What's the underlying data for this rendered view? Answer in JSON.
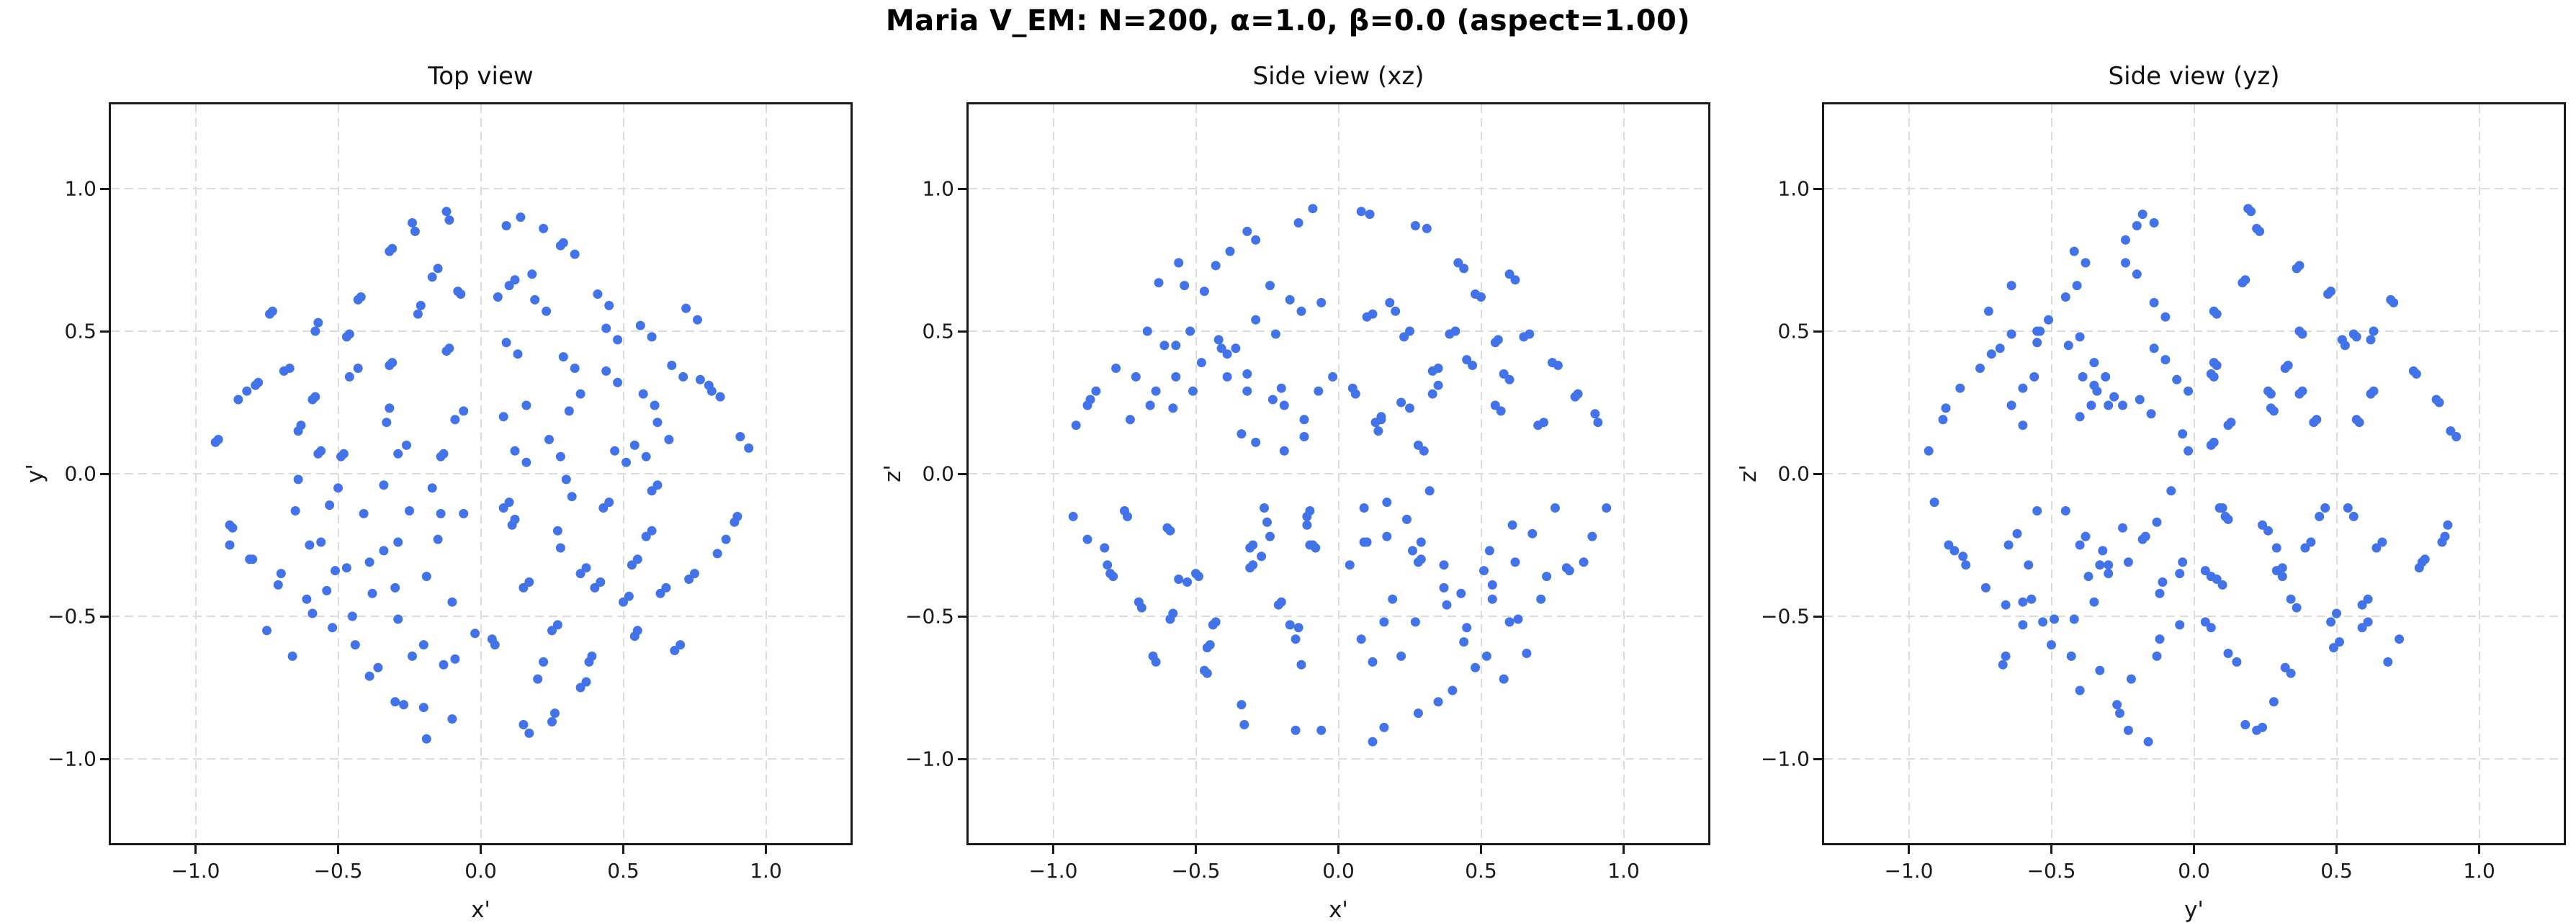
{
  "figure": {
    "suptitle": "Maria V_EM: N=200, α=1.0, β=0.0  (aspect=1.00)"
  },
  "style": {
    "point_color": "#4373e8",
    "grid_color": "#dcdcdc",
    "spine_color": "#1a1a1a",
    "background": "#ffffff"
  },
  "chart_data": {
    "type": "scatter",
    "n_points": 200,
    "params": {
      "N": "200",
      "alpha": "1.0",
      "beta": "0.0",
      "aspect": "1.00"
    },
    "grid": "dashed",
    "legend": "none",
    "axis_range": [
      -1.3,
      1.3
    ],
    "ticks": [
      -1.0,
      -0.5,
      0.0,
      0.5,
      1.0
    ],
    "tick_labels": [
      "−1.0",
      "−0.5",
      "0.0",
      "0.5",
      "1.0"
    ],
    "views": [
      {
        "title": "Top view",
        "xlabel": "x'",
        "ylabel": "y'",
        "dims": [
          0,
          1
        ]
      },
      {
        "title": "Side view (xz)",
        "xlabel": "x'",
        "ylabel": "z'",
        "dims": [
          0,
          2
        ]
      },
      {
        "title": "Side view (yz)",
        "xlabel": "y'",
        "ylabel": "z'",
        "dims": [
          1,
          2
        ]
      }
    ],
    "points_xyz": [
      [
        0.84,
        0.27,
        0.28
      ],
      [
        0.22,
        0.86,
        0.25
      ],
      [
        0.31,
        0.22,
        0.86
      ],
      [
        0.56,
        0.52,
        0.47
      ],
      [
        0.67,
        0.38,
        0.49
      ],
      [
        0.41,
        0.63,
        0.5
      ],
      [
        0.48,
        0.47,
        0.63
      ],
      [
        0.91,
        0.13,
        0.18
      ],
      [
        0.14,
        0.9,
        0.15
      ],
      [
        0.08,
        0.2,
        0.92
      ],
      [
        0.72,
        0.58,
        0.18
      ],
      [
        0.62,
        0.18,
        0.68
      ],
      [
        0.18,
        0.7,
        0.6
      ],
      [
        0.33,
        0.37,
        0.28
      ],
      [
        0.13,
        0.42,
        0.18
      ],
      [
        0.47,
        0.08,
        0.38
      ],
      [
        0.23,
        0.57,
        0.48
      ],
      [
        0.57,
        0.28,
        0.22
      ],
      [
        0.12,
        0.08,
        0.56
      ],
      [
        0.77,
        0.33,
        0.38
      ],
      [
        0.33,
        0.77,
        0.36
      ],
      [
        0.44,
        0.36,
        0.72
      ],
      [
        0.06,
        0.62,
        0.28
      ],
      [
        0.58,
        0.06,
        0.35
      ],
      [
        0.28,
        0.06,
        0.1
      ],
      [
        0.86,
        -0.23,
        -0.31
      ],
      [
        0.26,
        -0.84,
        -0.27
      ],
      [
        0.28,
        -0.26,
        -0.84
      ],
      [
        0.54,
        -0.57,
        -0.44
      ],
      [
        0.63,
        -0.42,
        -0.51
      ],
      [
        0.38,
        -0.66,
        -0.46
      ],
      [
        0.52,
        -0.43,
        -0.64
      ],
      [
        0.89,
        -0.17,
        -0.22
      ],
      [
        0.17,
        -0.91,
        -0.1
      ],
      [
        0.12,
        -0.16,
        -0.94
      ],
      [
        0.68,
        -0.62,
        -0.21
      ],
      [
        0.58,
        -0.22,
        -0.72
      ],
      [
        0.22,
        -0.66,
        -0.64
      ],
      [
        0.37,
        -0.33,
        -0.32
      ],
      [
        0.17,
        -0.38,
        -0.22
      ],
      [
        0.43,
        -0.12,
        -0.42
      ],
      [
        0.27,
        -0.53,
        -0.52
      ],
      [
        0.53,
        -0.32,
        -0.27
      ],
      [
        0.08,
        -0.12,
        -0.58
      ],
      [
        0.73,
        -0.37,
        -0.36
      ],
      [
        0.37,
        -0.73,
        -0.4
      ],
      [
        0.4,
        -0.4,
        -0.76
      ],
      [
        0.04,
        -0.58,
        -0.32
      ],
      [
        0.62,
        -0.04,
        -0.31
      ],
      [
        0.32,
        -0.08,
        -0.06
      ],
      [
        -0.82,
        0.29,
        -0.26
      ],
      [
        -0.24,
        0.88,
        -0.22
      ],
      [
        -0.33,
        0.18,
        -0.88
      ],
      [
        -0.58,
        0.5,
        -0.49
      ],
      [
        -0.69,
        0.36,
        -0.47
      ],
      [
        -0.43,
        0.61,
        -0.52
      ],
      [
        -0.46,
        0.49,
        -0.61
      ],
      [
        -0.93,
        0.11,
        -0.15
      ],
      [
        -0.11,
        0.89,
        -0.18
      ],
      [
        -0.06,
        0.22,
        -0.9
      ],
      [
        -0.74,
        0.56,
        -0.15
      ],
      [
        -0.64,
        0.15,
        -0.66
      ],
      [
        -0.15,
        0.72,
        -0.58
      ],
      [
        -0.31,
        0.39,
        -0.26
      ],
      [
        -0.11,
        0.44,
        -0.15
      ],
      [
        -0.49,
        0.06,
        -0.36
      ],
      [
        -0.21,
        0.59,
        -0.46
      ],
      [
        -0.59,
        0.26,
        -0.2
      ],
      [
        -0.14,
        0.06,
        -0.54
      ],
      [
        -0.79,
        0.31,
        -0.36
      ],
      [
        -0.31,
        0.79,
        -0.33
      ],
      [
        -0.46,
        0.34,
        -0.7
      ],
      [
        -0.08,
        0.64,
        -0.26
      ],
      [
        -0.56,
        0.08,
        -0.37
      ],
      [
        -0.26,
        0.1,
        -0.12
      ],
      [
        -0.88,
        -0.25,
        0.24
      ],
      [
        -0.2,
        -0.82,
        0.3
      ],
      [
        -0.29,
        -0.24,
        0.82
      ],
      [
        -0.52,
        -0.54,
        0.5
      ],
      [
        -0.61,
        -0.44,
        0.45
      ],
      [
        -0.36,
        -0.68,
        0.44
      ],
      [
        -0.54,
        -0.41,
        0.66
      ],
      [
        -0.87,
        -0.19,
        0.26
      ],
      [
        -0.19,
        -0.93,
        0.08
      ],
      [
        -0.14,
        -0.14,
        0.88
      ],
      [
        -0.66,
        -0.64,
        0.24
      ],
      [
        -0.56,
        -0.24,
        0.74
      ],
      [
        -0.24,
        -0.64,
        0.66
      ],
      [
        -0.39,
        -0.31,
        0.34
      ],
      [
        -0.19,
        -0.36,
        0.24
      ],
      [
        -0.41,
        -0.14,
        0.44
      ],
      [
        -0.29,
        -0.51,
        0.54
      ],
      [
        -0.51,
        -0.34,
        0.29
      ],
      [
        -0.06,
        -0.14,
        0.6
      ],
      [
        -0.71,
        -0.39,
        0.34
      ],
      [
        -0.39,
        -0.71,
        0.42
      ],
      [
        -0.38,
        -0.42,
        0.78
      ],
      [
        -0.02,
        -0.56,
        0.34
      ],
      [
        -0.64,
        -0.02,
        0.29
      ],
      [
        -0.34,
        -0.04,
        0.14
      ],
      [
        0.8,
        0.31,
        -0.33
      ],
      [
        0.28,
        0.8,
        -0.31
      ],
      [
        0.35,
        0.28,
        -0.8
      ],
      [
        0.6,
        0.48,
        -0.52
      ],
      [
        0.71,
        0.34,
        -0.44
      ],
      [
        0.45,
        0.59,
        -0.54
      ],
      [
        0.44,
        0.51,
        -0.59
      ],
      [
        0.94,
        0.09,
        -0.12
      ],
      [
        0.09,
        0.87,
        -0.24
      ],
      [
        0.16,
        0.24,
        -0.89
      ],
      [
        0.76,
        0.54,
        -0.12
      ],
      [
        0.66,
        0.12,
        -0.63
      ],
      [
        0.12,
        0.68,
        -0.66
      ],
      [
        0.29,
        0.41,
        -0.24
      ],
      [
        0.09,
        0.46,
        -0.12
      ],
      [
        0.51,
        0.04,
        -0.34
      ],
      [
        0.19,
        0.61,
        -0.44
      ],
      [
        0.61,
        0.24,
        -0.18
      ],
      [
        0.16,
        0.04,
        -0.52
      ],
      [
        0.81,
        0.29,
        -0.34
      ],
      [
        0.29,
        0.81,
        -0.3
      ],
      [
        0.48,
        0.32,
        -0.68
      ],
      [
        0.1,
        0.66,
        -0.24
      ],
      [
        0.54,
        0.1,
        -0.39
      ],
      [
        0.24,
        0.12,
        -0.16
      ],
      [
        0.83,
        -0.28,
        0.27
      ],
      [
        0.25,
        -0.87,
        0.23
      ],
      [
        0.27,
        -0.2,
        0.87
      ],
      [
        0.55,
        -0.55,
        0.46
      ],
      [
        0.65,
        -0.4,
        0.48
      ],
      [
        0.39,
        -0.64,
        0.49
      ],
      [
        0.5,
        -0.45,
        0.62
      ],
      [
        0.9,
        -0.15,
        0.21
      ],
      [
        0.15,
        -0.88,
        0.19
      ],
      [
        0.11,
        -0.18,
        0.91
      ],
      [
        0.7,
        -0.6,
        0.17
      ],
      [
        0.6,
        -0.2,
        0.7
      ],
      [
        0.2,
        -0.72,
        0.57
      ],
      [
        0.35,
        -0.35,
        0.31
      ],
      [
        0.15,
        -0.4,
        0.2
      ],
      [
        0.45,
        -0.1,
        0.4
      ],
      [
        0.25,
        -0.55,
        0.5
      ],
      [
        0.55,
        -0.3,
        0.24
      ],
      [
        0.1,
        -0.1,
        0.55
      ],
      [
        0.75,
        -0.35,
        0.39
      ],
      [
        0.35,
        -0.75,
        0.37
      ],
      [
        0.42,
        -0.38,
        0.74
      ],
      [
        0.05,
        -0.6,
        0.3
      ],
      [
        0.6,
        -0.06,
        0.33
      ],
      [
        0.3,
        -0.02,
        0.08
      ],
      [
        -0.85,
        0.26,
        0.29
      ],
      [
        -0.23,
        0.85,
        0.26
      ],
      [
        -0.32,
        0.23,
        0.85
      ],
      [
        -0.57,
        0.53,
        0.45
      ],
      [
        -0.67,
        0.37,
        0.5
      ],
      [
        -0.42,
        0.62,
        0.47
      ],
      [
        -0.47,
        0.48,
        0.64
      ],
      [
        -0.92,
        0.12,
        0.17
      ],
      [
        -0.12,
        0.92,
        0.13
      ],
      [
        -0.09,
        0.19,
        0.93
      ],
      [
        -0.73,
        0.57,
        0.19
      ],
      [
        -0.63,
        0.17,
        0.67
      ],
      [
        -0.17,
        0.69,
        0.61
      ],
      [
        -0.32,
        0.38,
        0.29
      ],
      [
        -0.12,
        0.43,
        0.19
      ],
      [
        -0.48,
        0.07,
        0.39
      ],
      [
        -0.22,
        0.56,
        0.49
      ],
      [
        -0.58,
        0.27,
        0.23
      ],
      [
        -0.13,
        0.07,
        0.57
      ],
      [
        -0.78,
        0.32,
        0.37
      ],
      [
        -0.32,
        0.78,
        0.35
      ],
      [
        -0.43,
        0.37,
        0.73
      ],
      [
        -0.07,
        0.63,
        0.29
      ],
      [
        -0.57,
        0.07,
        0.34
      ],
      [
        -0.29,
        0.07,
        0.11
      ],
      [
        -0.81,
        -0.3,
        -0.32
      ],
      [
        -0.27,
        -0.81,
        -0.29
      ],
      [
        -0.34,
        -0.27,
        -0.81
      ],
      [
        -0.59,
        -0.49,
        -0.51
      ],
      [
        -0.7,
        -0.35,
        -0.45
      ],
      [
        -0.44,
        -0.6,
        -0.53
      ],
      [
        -0.45,
        -0.5,
        -0.6
      ],
      [
        -0.88,
        -0.18,
        -0.23
      ],
      [
        -0.1,
        -0.86,
        -0.25
      ],
      [
        -0.15,
        -0.23,
        -0.9
      ],
      [
        -0.75,
        -0.55,
        -0.13
      ],
      [
        -0.65,
        -0.13,
        -0.64
      ],
      [
        -0.13,
        -0.67,
        -0.67
      ],
      [
        -0.3,
        -0.4,
        -0.25
      ],
      [
        -0.1,
        -0.45,
        -0.13
      ],
      [
        -0.5,
        -0.05,
        -0.35
      ],
      [
        -0.2,
        -0.6,
        -0.45
      ],
      [
        -0.6,
        -0.25,
        -0.19
      ],
      [
        -0.17,
        -0.05,
        -0.53
      ],
      [
        -0.8,
        -0.3,
        -0.35
      ],
      [
        -0.3,
        -0.8,
        -0.32
      ],
      [
        -0.47,
        -0.33,
        -0.69
      ],
      [
        -0.09,
        -0.65,
        -0.25
      ],
      [
        -0.53,
        -0.11,
        -0.38
      ],
      [
        -0.25,
        -0.13,
        -0.17
      ]
    ]
  }
}
